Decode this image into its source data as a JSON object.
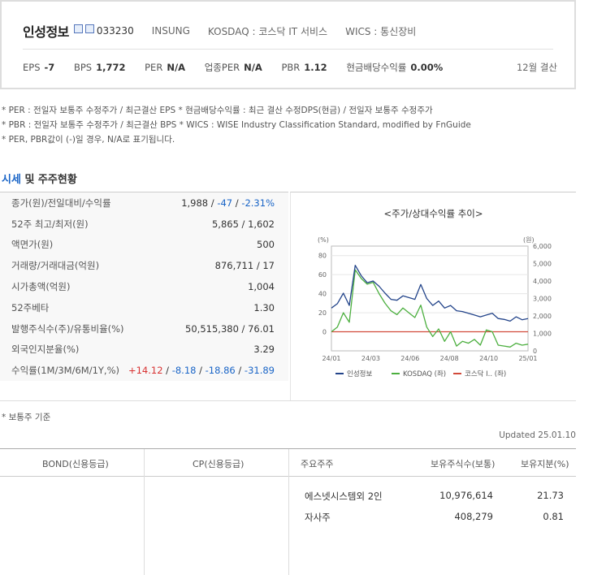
{
  "header": {
    "company_name": "인성정보",
    "code": "033230",
    "eng_name": "INSUNG",
    "market": "KOSDAQ : 코스닥 IT 서비스",
    "wics": "WICS : 통신장비",
    "metrics": [
      {
        "label": "EPS",
        "value": "-7"
      },
      {
        "label": "BPS",
        "value": "1,772"
      },
      {
        "label": "PER",
        "value": "N/A"
      },
      {
        "label": "업종PER",
        "value": "N/A"
      },
      {
        "label": "PBR",
        "value": "1.12"
      },
      {
        "label": "현금배당수익률",
        "value": "0.00%"
      }
    ],
    "fiscal": "12월 결산"
  },
  "notes": [
    "* PER : 전일자 보통주 수정주가 / 최근결산 EPS * 현금배당수익률 : 최근 결산 수정DPS(현금) / 전일자 보통주 수정주가",
    "* PBR : 전일자 보통주 수정주가 / 최근결산 BPS * WICS : WISE Industry Classification Standard, modified by FnGuide",
    "* PER, PBR값이 (-)일 경우, N/A로 표기됩니다."
  ],
  "section": {
    "title_highlight": "시세",
    "title_rest": " 및 주주현황"
  },
  "price_table": {
    "close_label": "종가(원)/전일대비/수익률",
    "close": "1,988",
    "change": "-47",
    "change_pct": "-2.31%",
    "rows": [
      {
        "label": "52주 최고/최저(원)",
        "value": "5,865 / 1,602"
      },
      {
        "label": "액면가(원)",
        "value": "500"
      },
      {
        "label": "거래량/거래대금(억원)",
        "value": "876,711 / 17"
      },
      {
        "label": "시가총액(억원)",
        "value": "1,004"
      },
      {
        "label": "52주베타",
        "value": "1.30"
      },
      {
        "label": "발행주식수(주)/유통비율(%)",
        "value": "50,515,380 / 76.01"
      },
      {
        "label": "외국인지분율(%)",
        "value": "3.29"
      }
    ],
    "returns_label": "수익률(1M/3M/6M/1Y,%)",
    "returns": [
      "+14.12",
      "-8.18",
      "-18.86",
      "-31.89"
    ]
  },
  "chart_data": {
    "type": "line",
    "title": "<주가/상대수익률 추이>",
    "left_unit": "(%)",
    "right_unit": "(원)",
    "left_ticks": [
      "80",
      "60",
      "40",
      "20",
      "0"
    ],
    "right_ticks": [
      "6,000",
      "5,000",
      "4,000",
      "3,000",
      "2,000",
      "1,000",
      "0"
    ],
    "x_ticks": [
      "24/01",
      "24/03",
      "24/06",
      "24/08",
      "24/10",
      "25/01"
    ],
    "ylim_left": [
      -20,
      90
    ],
    "ylim_right": [
      0,
      6000
    ],
    "series": [
      {
        "name": "인성정보",
        "axis": "right",
        "color": "#23448a",
        "values": [
          2450,
          2700,
          3300,
          2600,
          4900,
          4300,
          3900,
          4000,
          3700,
          3300,
          2950,
          2900,
          3150,
          3050,
          2950,
          3800,
          3000,
          2600,
          2850,
          2450,
          2600,
          2300,
          2250,
          2150,
          2050,
          1950,
          2050,
          2150,
          1850,
          1800,
          1700,
          1950,
          1780,
          1850
        ]
      },
      {
        "name": "KOSDAQ (좌)",
        "axis": "left",
        "color": "#4caf3f",
        "values": [
          0,
          5,
          20,
          10,
          65,
          56,
          50,
          52,
          40,
          30,
          22,
          18,
          25,
          20,
          15,
          28,
          5,
          -5,
          3,
          -10,
          0,
          -15,
          -10,
          -12,
          -8,
          -14,
          2,
          0,
          -14,
          -15,
          -16,
          -12,
          -14,
          -13
        ]
      },
      {
        "name": "코스닥 I.. (좌)",
        "axis": "left",
        "color": "#d24a3a",
        "values": [
          0,
          0,
          0,
          0,
          0,
          0,
          0,
          0,
          0,
          0,
          0,
          0,
          0,
          0,
          0,
          0,
          0,
          0,
          0,
          0,
          0,
          0,
          0,
          0,
          0,
          0,
          0,
          0,
          0,
          0,
          0,
          0,
          0,
          0
        ]
      }
    ]
  },
  "footnote": "* 보통주 기준",
  "updated": "Updated 25.01.10",
  "bottom": {
    "col_bond": "BOND(신용등급)",
    "col_cp": "CP(신용등급)",
    "col_holder": "주요주주",
    "col_shares": "보유주식수(보통)",
    "col_pct": "보유지분(%)",
    "holders": [
      {
        "name": "에스넷시스템외 2인",
        "shares": "10,976,614",
        "pct": "21.73"
      },
      {
        "name": "자사주",
        "shares": "408,279",
        "pct": "0.81"
      }
    ]
  }
}
